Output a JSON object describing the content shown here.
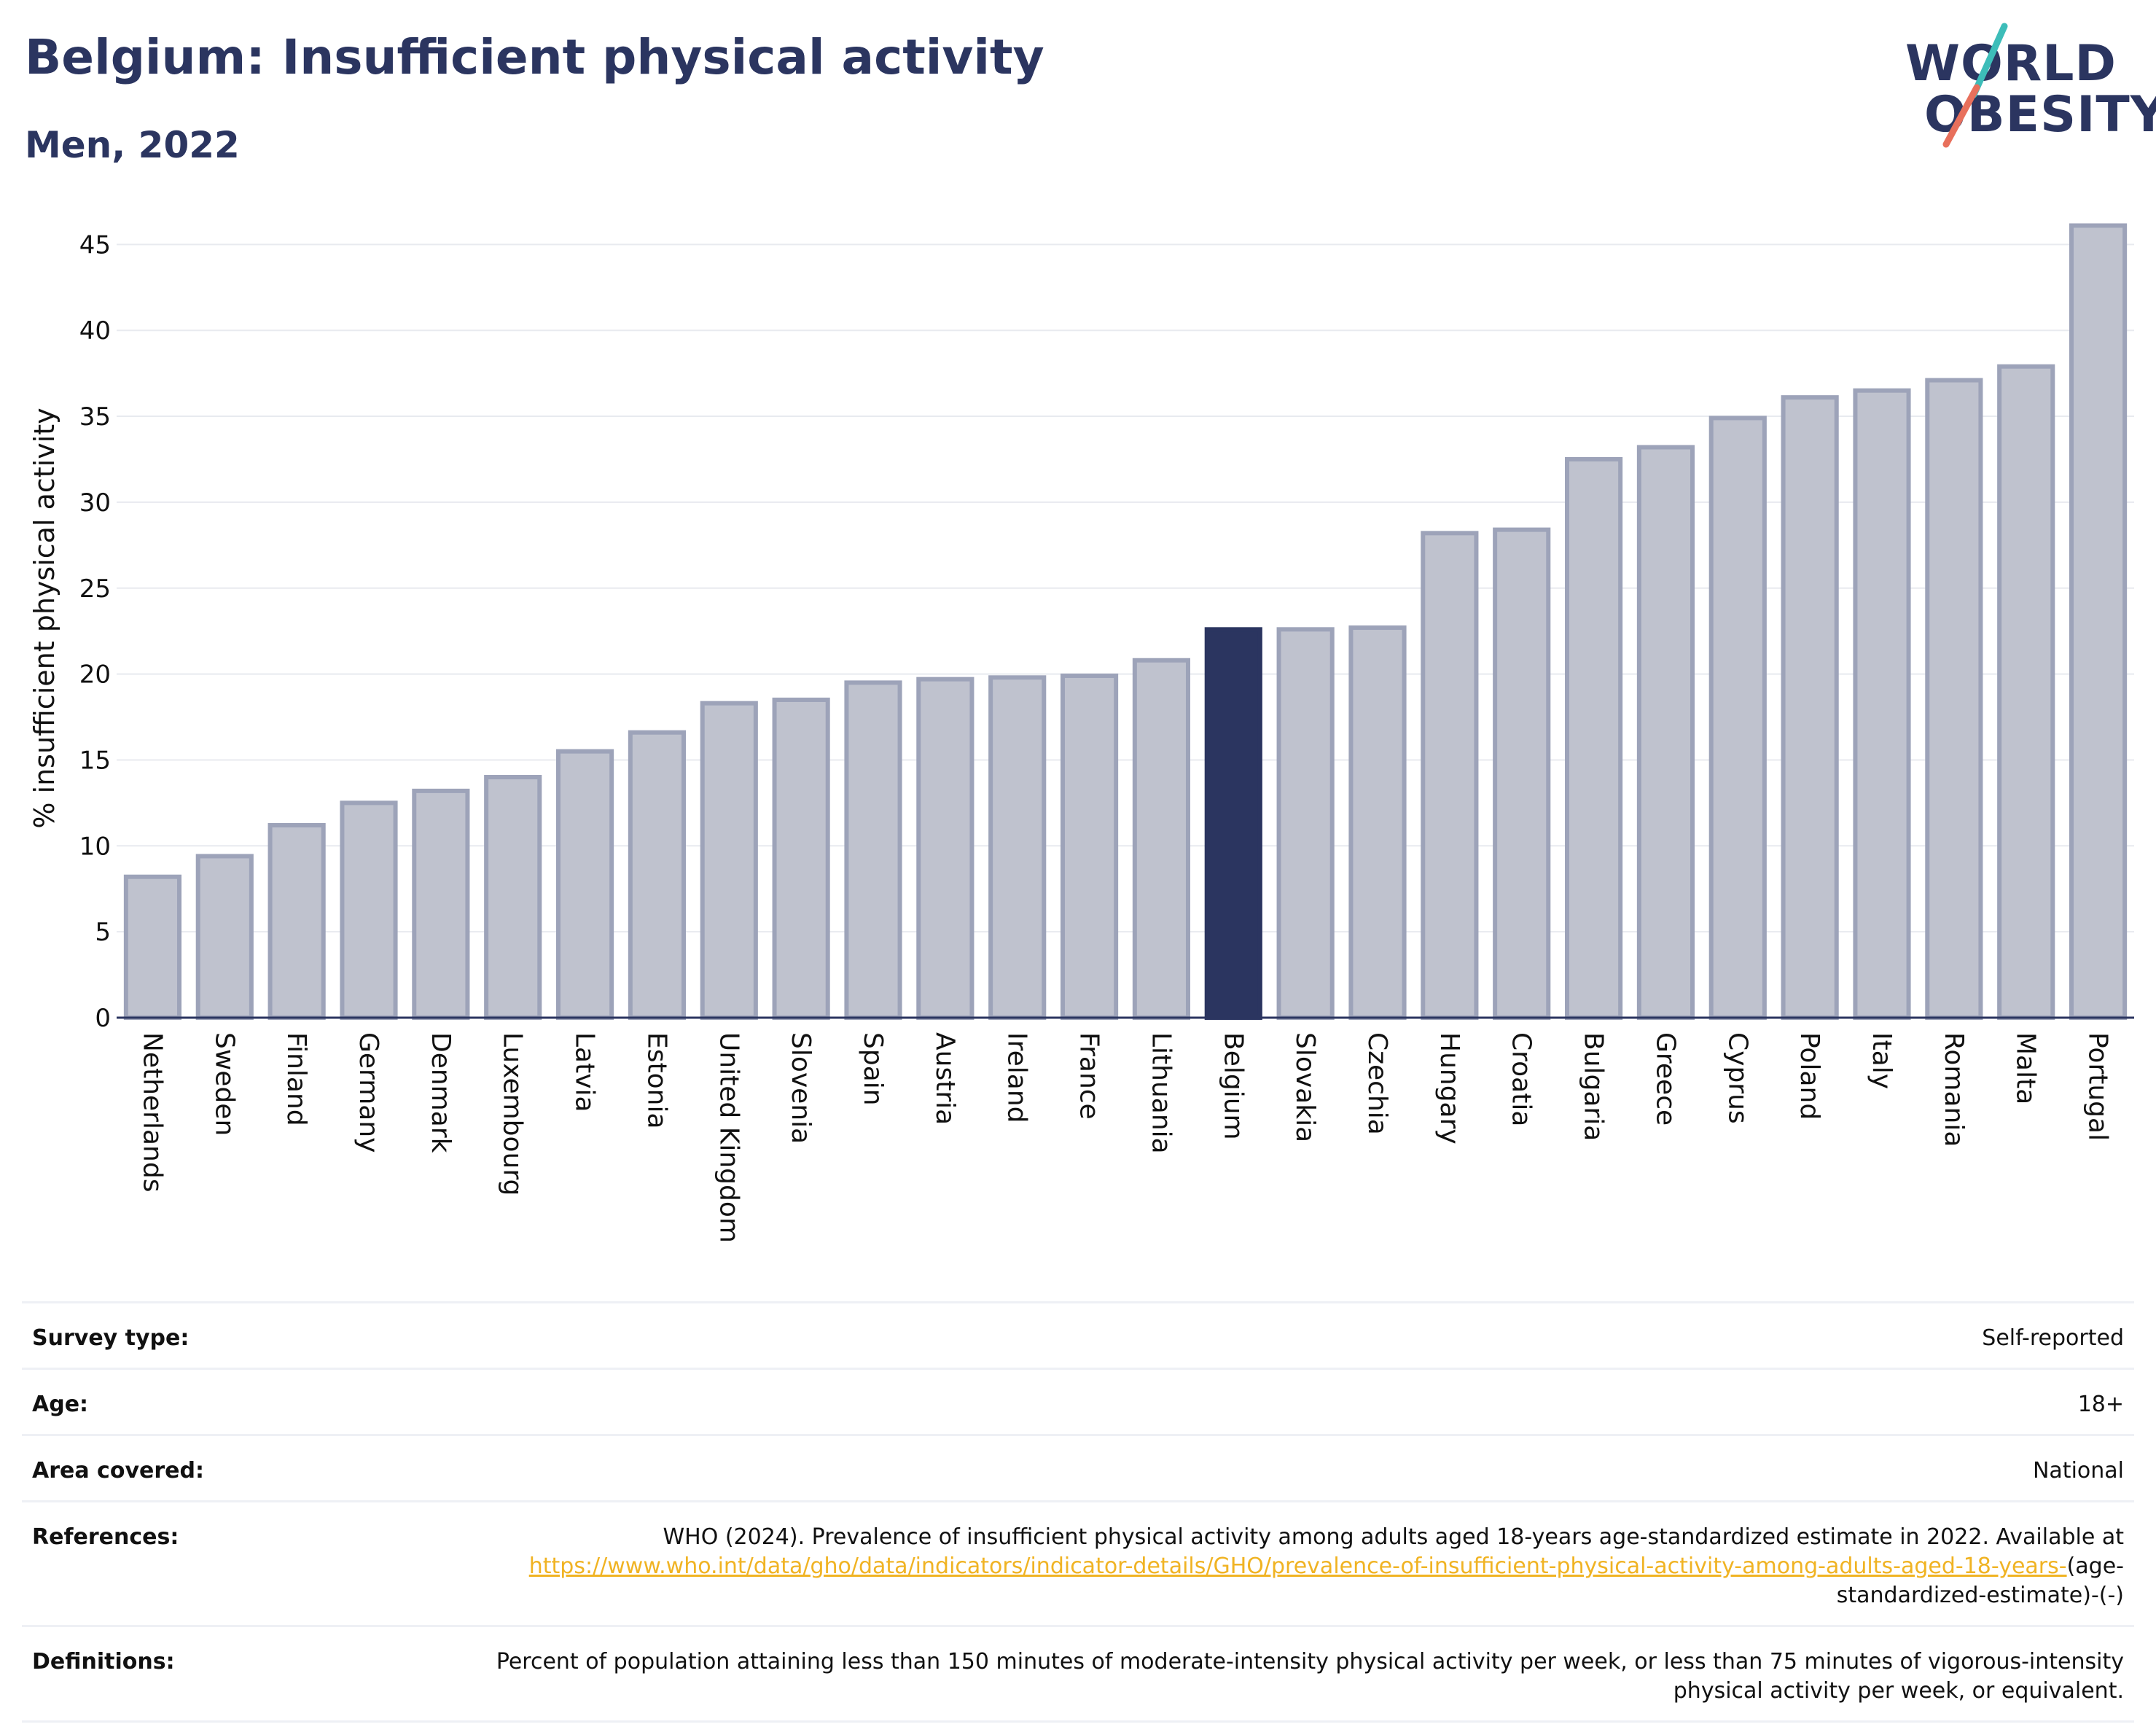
{
  "header": {
    "title": "Belgium: Insufficient physical activity",
    "subtitle": "Men, 2022"
  },
  "logo": {
    "line1": "WORLD",
    "line2": "OBESITY",
    "accent_colors": [
      "#3dbdb9",
      "#e8705c"
    ]
  },
  "colors": {
    "bar": "#bfc2ce",
    "bar_stroke": "#9da3b9",
    "highlight": "#2b3560",
    "text_dark": "#2b3560",
    "link": "#f0b323"
  },
  "chart_data": {
    "type": "bar",
    "ylabel": "% insufficient physical activity",
    "xlabel": "",
    "ylim": [
      0,
      46.5
    ],
    "yticks": [
      0,
      5,
      10,
      15,
      20,
      25,
      30,
      35,
      40,
      45
    ],
    "grid": true,
    "highlight": "Belgium",
    "categories": [
      "Netherlands",
      "Sweden",
      "Finland",
      "Germany",
      "Denmark",
      "Luxembourg",
      "Latvia",
      "Estonia",
      "United Kingdom",
      "Slovenia",
      "Spain",
      "Austria",
      "Ireland",
      "France",
      "Lithuania",
      "Belgium",
      "Slovakia",
      "Czechia",
      "Hungary",
      "Croatia",
      "Bulgaria",
      "Greece",
      "Cyprus",
      "Poland",
      "Italy",
      "Romania",
      "Malta",
      "Portugal"
    ],
    "values": [
      8.2,
      9.4,
      11.2,
      12.5,
      13.2,
      14.0,
      15.5,
      16.6,
      18.3,
      18.5,
      19.5,
      19.7,
      19.8,
      19.9,
      20.8,
      22.6,
      22.6,
      22.7,
      28.2,
      28.4,
      32.5,
      33.2,
      34.9,
      36.1,
      36.5,
      37.1,
      37.9,
      46.1
    ]
  },
  "info": [
    {
      "label": "Survey type:",
      "value": "Self-reported"
    },
    {
      "label": "Age:",
      "value": "18+"
    },
    {
      "label": "Area covered:",
      "value": "National"
    },
    {
      "label": "References:",
      "value": "WHO (2024). Prevalence of insufficient physical activity among adults aged 18-years age-standardized estimate in 2022. Available at",
      "link": "https://www.who.int/data/gho/data/indicators/indicator-details/GHO/prevalence-of-insufficient-physical-activity-among-adults-aged-18-years-",
      "suffix": "(age-standardized-estimate)-(-)"
    },
    {
      "label": "Definitions:",
      "value": "Percent of population attaining less than 150 minutes of moderate-intensity physical activity per week, or less than 75 minutes of vigorous-intensity physical activity per week, or equivalent."
    }
  ]
}
